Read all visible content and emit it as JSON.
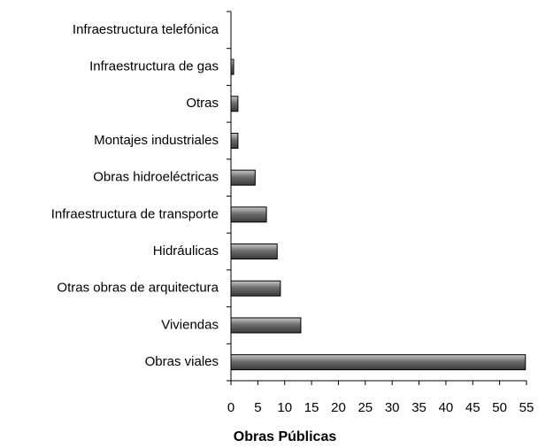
{
  "chart_data": {
    "type": "barh",
    "x_label": "Obras Públicas",
    "categories": [
      "Infraestructura telefónica",
      "Infraestructura de gas",
      "Otras",
      "Montajes industriales",
      "Obras hidroeléctricas",
      "Infraestructura de transporte",
      "Hidráulicas",
      "Otras obras de arquitectura",
      "Viviendas",
      "Obras viales"
    ],
    "values": [
      0,
      0.5,
      1.3,
      1.3,
      4.5,
      6.6,
      8.6,
      9.2,
      13,
      54.8
    ],
    "color": "#808080",
    "xlim": [
      0,
      55
    ],
    "xticks": [
      0,
      5,
      10,
      15,
      20,
      25,
      30,
      35,
      40,
      45,
      50,
      55
    ]
  }
}
